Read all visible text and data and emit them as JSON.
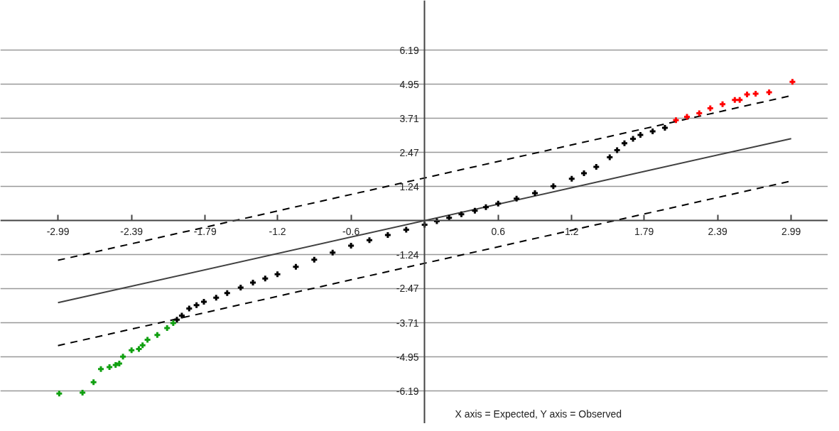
{
  "chart_data": {
    "type": "scatter",
    "annotations": [
      "X axis = Expected, Y axis = Observed"
    ],
    "xlim": [
      -3.46,
      3.29
    ],
    "ylim": [
      -7.37,
      8.0
    ],
    "xticks": [
      -2.99,
      -2.39,
      -1.79,
      -1.2,
      -0.6,
      0.6,
      1.2,
      1.79,
      2.39,
      2.99
    ],
    "yticks": [
      -6.19,
      -4.95,
      -3.71,
      -2.47,
      -1.24,
      1.24,
      2.47,
      3.71,
      4.95,
      6.19
    ],
    "grid": "y",
    "marker": "cross",
    "series": [
      {
        "color": "#10a010",
        "x": [
          -2.98,
          -2.79,
          -2.7,
          -2.64,
          -2.57,
          -2.52,
          -2.49,
          -2.46,
          -2.39,
          -2.33,
          -2.3,
          -2.26,
          -2.18,
          -2.1,
          -2.05
        ],
        "values": [
          -6.28,
          -6.25,
          -5.87,
          -5.39,
          -5.32,
          -5.24,
          -5.19,
          -4.94,
          -4.71,
          -4.66,
          -4.53,
          -4.33,
          -4.15,
          -3.9,
          -3.72
        ]
      },
      {
        "color": "#000000",
        "x": [
          -2.02,
          -1.98,
          -1.92,
          -1.86,
          -1.8,
          -1.7,
          -1.61,
          -1.5,
          -1.4,
          -1.3,
          -1.2,
          -1.05,
          -0.9,
          -0.75,
          -0.6,
          -0.45,
          -0.3,
          -0.15,
          0.0,
          0.1,
          0.2,
          0.3,
          0.41,
          0.5,
          0.6,
          0.75,
          0.9,
          1.05,
          1.2,
          1.3,
          1.4,
          1.51,
          1.57,
          1.63,
          1.7,
          1.76,
          1.86,
          1.96
        ],
        "values": [
          -3.6,
          -3.45,
          -3.19,
          -3.07,
          -2.95,
          -2.8,
          -2.63,
          -2.43,
          -2.25,
          -2.1,
          -1.95,
          -1.68,
          -1.42,
          -1.16,
          -0.91,
          -0.71,
          -0.52,
          -0.33,
          -0.15,
          -0.02,
          0.1,
          0.23,
          0.36,
          0.49,
          0.62,
          0.8,
          1.0,
          1.25,
          1.52,
          1.72,
          1.95,
          2.3,
          2.56,
          2.81,
          2.97,
          3.11,
          3.24,
          3.37
        ]
      },
      {
        "color": "#ff0000",
        "x": [
          2.05,
          2.14,
          2.24,
          2.33,
          2.43,
          2.53,
          2.57,
          2.63,
          2.7,
          2.81,
          3.0
        ],
        "values": [
          3.65,
          3.77,
          3.9,
          4.08,
          4.23,
          4.38,
          4.38,
          4.58,
          4.61,
          4.66,
          5.04
        ]
      },
      {
        "type": "line",
        "color": "#404040",
        "line_style": "solid",
        "marker": "none",
        "x": [
          -2.99,
          2.99
        ],
        "values": [
          -2.98,
          2.98
        ]
      },
      {
        "type": "line",
        "color": "#000000",
        "line_style": "dashed",
        "marker": "none",
        "x": [
          -2.99,
          2.99
        ],
        "values": [
          -1.44,
          4.54
        ]
      },
      {
        "type": "line",
        "color": "#000000",
        "line_style": "dashed",
        "marker": "none",
        "x": [
          -2.99,
          2.99
        ],
        "values": [
          -4.54,
          1.44
        ]
      }
    ]
  }
}
